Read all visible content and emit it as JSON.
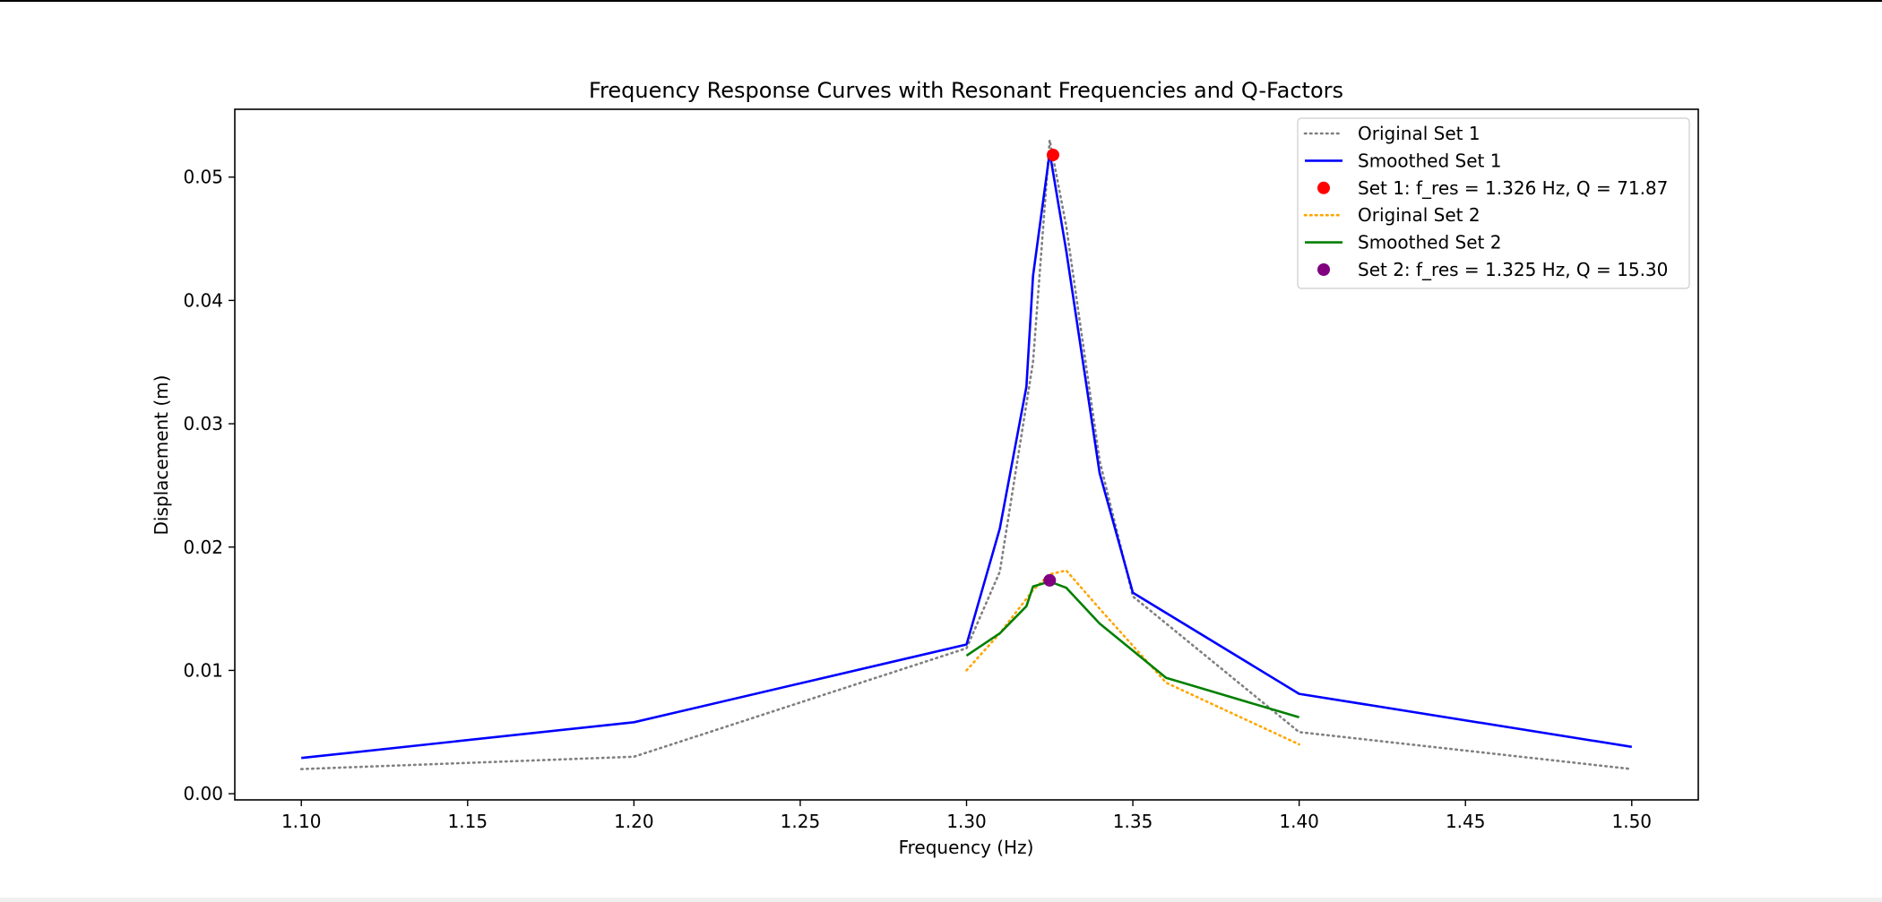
{
  "chart_data": {
    "type": "line",
    "title": "Frequency Response Curves with Resonant Frequencies and Q-Factors",
    "xlabel": "Frequency (Hz)",
    "ylabel": "Displacement (m)",
    "xlim": [
      1.08,
      1.52
    ],
    "ylim": [
      -0.0005,
      0.0555
    ],
    "xticks": [
      1.1,
      1.15,
      1.2,
      1.25,
      1.3,
      1.35,
      1.4,
      1.45,
      1.5
    ],
    "xtick_labels": [
      "1.10",
      "1.15",
      "1.20",
      "1.25",
      "1.30",
      "1.35",
      "1.40",
      "1.45",
      "1.50"
    ],
    "yticks": [
      0.0,
      0.01,
      0.02,
      0.03,
      0.04,
      0.05
    ],
    "ytick_labels": [
      "0.00",
      "0.01",
      "0.02",
      "0.03",
      "0.04",
      "0.05"
    ],
    "grid": false,
    "legend_position": "top-right",
    "series": [
      {
        "name": "Original Set 1",
        "style": "dotted",
        "color": "#808080",
        "x": [
          1.1,
          1.2,
          1.3,
          1.31,
          1.32,
          1.325,
          1.33,
          1.34,
          1.35,
          1.4,
          1.5
        ],
        "y": [
          0.002,
          0.003,
          0.0118,
          0.018,
          0.035,
          0.053,
          0.046,
          0.027,
          0.016,
          0.005,
          0.002
        ]
      },
      {
        "name": "Smoothed Set 1",
        "style": "solid",
        "color": "#0000ff",
        "x": [
          1.1,
          1.2,
          1.3,
          1.31,
          1.318,
          1.32,
          1.325,
          1.33,
          1.34,
          1.35,
          1.4,
          1.5
        ],
        "y": [
          0.0029,
          0.0058,
          0.0121,
          0.0215,
          0.033,
          0.042,
          0.052,
          0.044,
          0.026,
          0.0163,
          0.0081,
          0.0038
        ]
      },
      {
        "name": "Original Set 2",
        "style": "dotted",
        "color": "#ffa500",
        "x": [
          1.3,
          1.31,
          1.32,
          1.325,
          1.33,
          1.34,
          1.35,
          1.36,
          1.4
        ],
        "y": [
          0.01,
          0.013,
          0.0165,
          0.0178,
          0.0181,
          0.015,
          0.012,
          0.009,
          0.004
        ]
      },
      {
        "name": "Smoothed Set 2",
        "style": "solid",
        "color": "#008000",
        "x": [
          1.3,
          1.31,
          1.318,
          1.32,
          1.325,
          1.33,
          1.34,
          1.35,
          1.36,
          1.4
        ],
        "y": [
          0.0112,
          0.013,
          0.0152,
          0.0168,
          0.0172,
          0.0167,
          0.0138,
          0.0116,
          0.0094,
          0.0062
        ]
      }
    ],
    "markers": [
      {
        "name": "Set 1: f_res = 1.326 Hz, Q = 71.87",
        "color": "#ff0000",
        "x": 1.326,
        "y": 0.0518
      },
      {
        "name": "Set 2: f_res = 1.325 Hz, Q = 15.30",
        "color": "#800080",
        "x": 1.325,
        "y": 0.0173
      }
    ],
    "legend": [
      {
        "label": "Original Set 1",
        "kind": "line",
        "style": "dotted",
        "color": "#808080"
      },
      {
        "label": "Smoothed Set 1",
        "kind": "line",
        "style": "solid",
        "color": "#0000ff"
      },
      {
        "label": "Set 1: f_res = 1.326 Hz, Q = 71.87",
        "kind": "marker",
        "color": "#ff0000"
      },
      {
        "label": "Original Set 2",
        "kind": "line",
        "style": "dotted",
        "color": "#ffa500"
      },
      {
        "label": "Smoothed Set 2",
        "kind": "line",
        "style": "solid",
        "color": "#008000"
      },
      {
        "label": "Set 2: f_res = 1.325 Hz, Q = 15.30",
        "kind": "marker",
        "color": "#800080"
      }
    ]
  }
}
